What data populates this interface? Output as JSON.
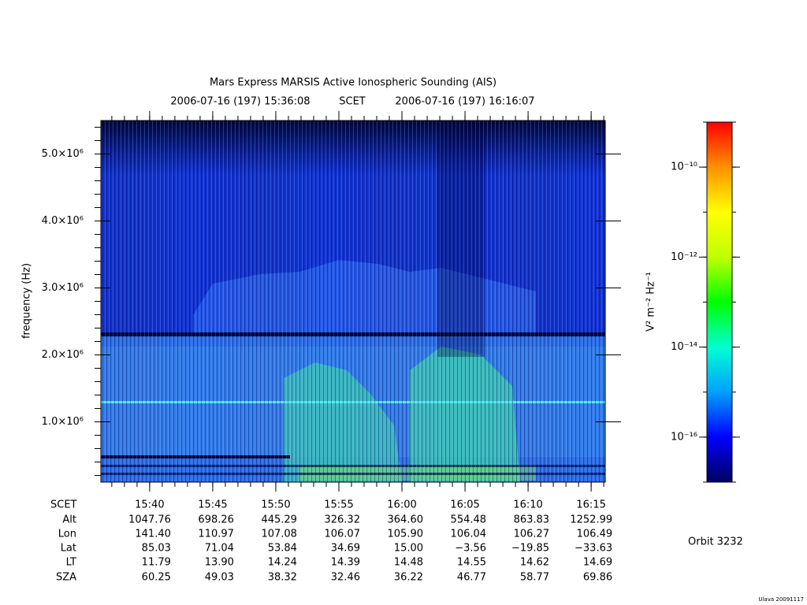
{
  "chart_data": {
    "type": "spectrogram",
    "title": "Mars Express MARSIS Active Ionospheric Sounding (AIS)",
    "subtitle": [
      "2006-07-16 (197) 15:36:08",
      "SCET",
      "2006-07-16 (197) 16:16:07"
    ],
    "y_label": "frequency (Hz)",
    "ylim": [
      100000,
      5500000
    ],
    "yticks": [
      {
        "value": 1000000,
        "label": "1.0×10⁶"
      },
      {
        "value": 2000000,
        "label": "2.0×10⁶"
      },
      {
        "value": 3000000,
        "label": "3.0×10⁶"
      },
      {
        "value": 4000000,
        "label": "4.0×10⁶"
      },
      {
        "value": 5000000,
        "label": "5.0×10⁶"
      }
    ],
    "x_label": "SCET",
    "xlim": [
      "15:36:08",
      "16:16:07"
    ],
    "xticks": [
      "15:40",
      "15:45",
      "15:50",
      "15:55",
      "16:00",
      "16:05",
      "16:10",
      "16:15"
    ],
    "ephemeris": [
      {
        "name": "Alt",
        "values": [
          "1047.76",
          "698.26",
          "445.29",
          "326.32",
          "364.60",
          "554.48",
          "863.83",
          "1252.99"
        ]
      },
      {
        "name": "Lon",
        "values": [
          "141.40",
          "110.97",
          "107.08",
          "106.07",
          "105.90",
          "106.04",
          "106.27",
          "106.49"
        ]
      },
      {
        "name": "Lat",
        "values": [
          "85.03",
          "71.04",
          "53.84",
          "34.69",
          "15.00",
          "−3.56",
          "−19.85",
          "−33.63"
        ]
      },
      {
        "name": "LT",
        "values": [
          "11.79",
          "13.90",
          "14.24",
          "14.39",
          "14.48",
          "14.55",
          "14.62",
          "14.69"
        ]
      },
      {
        "name": "SZA",
        "values": [
          "60.25",
          "49.03",
          "38.32",
          "32.46",
          "36.22",
          "46.77",
          "58.77",
          "69.86"
        ]
      }
    ],
    "colorbar": {
      "label": "V² m⁻² Hz⁻¹",
      "scale": "log",
      "lim": [
        1e-17,
        1e-09
      ],
      "ticks": [
        {
          "value": 1e-16,
          "label": "10⁻¹⁶"
        },
        {
          "value": 1e-14,
          "label": "10⁻¹⁴"
        },
        {
          "value": 1e-12,
          "label": "10⁻¹²"
        },
        {
          "value": 1e-10,
          "label": "10⁻¹⁰"
        }
      ],
      "colors": [
        "#000060",
        "#0000ff",
        "#00a0ff",
        "#00ffd0",
        "#00ff00",
        "#c0ff00",
        "#ffff00",
        "#ff9000",
        "#ff0000"
      ]
    },
    "orbit": "Orbit 3232",
    "credit": "Ulava 20091117"
  }
}
